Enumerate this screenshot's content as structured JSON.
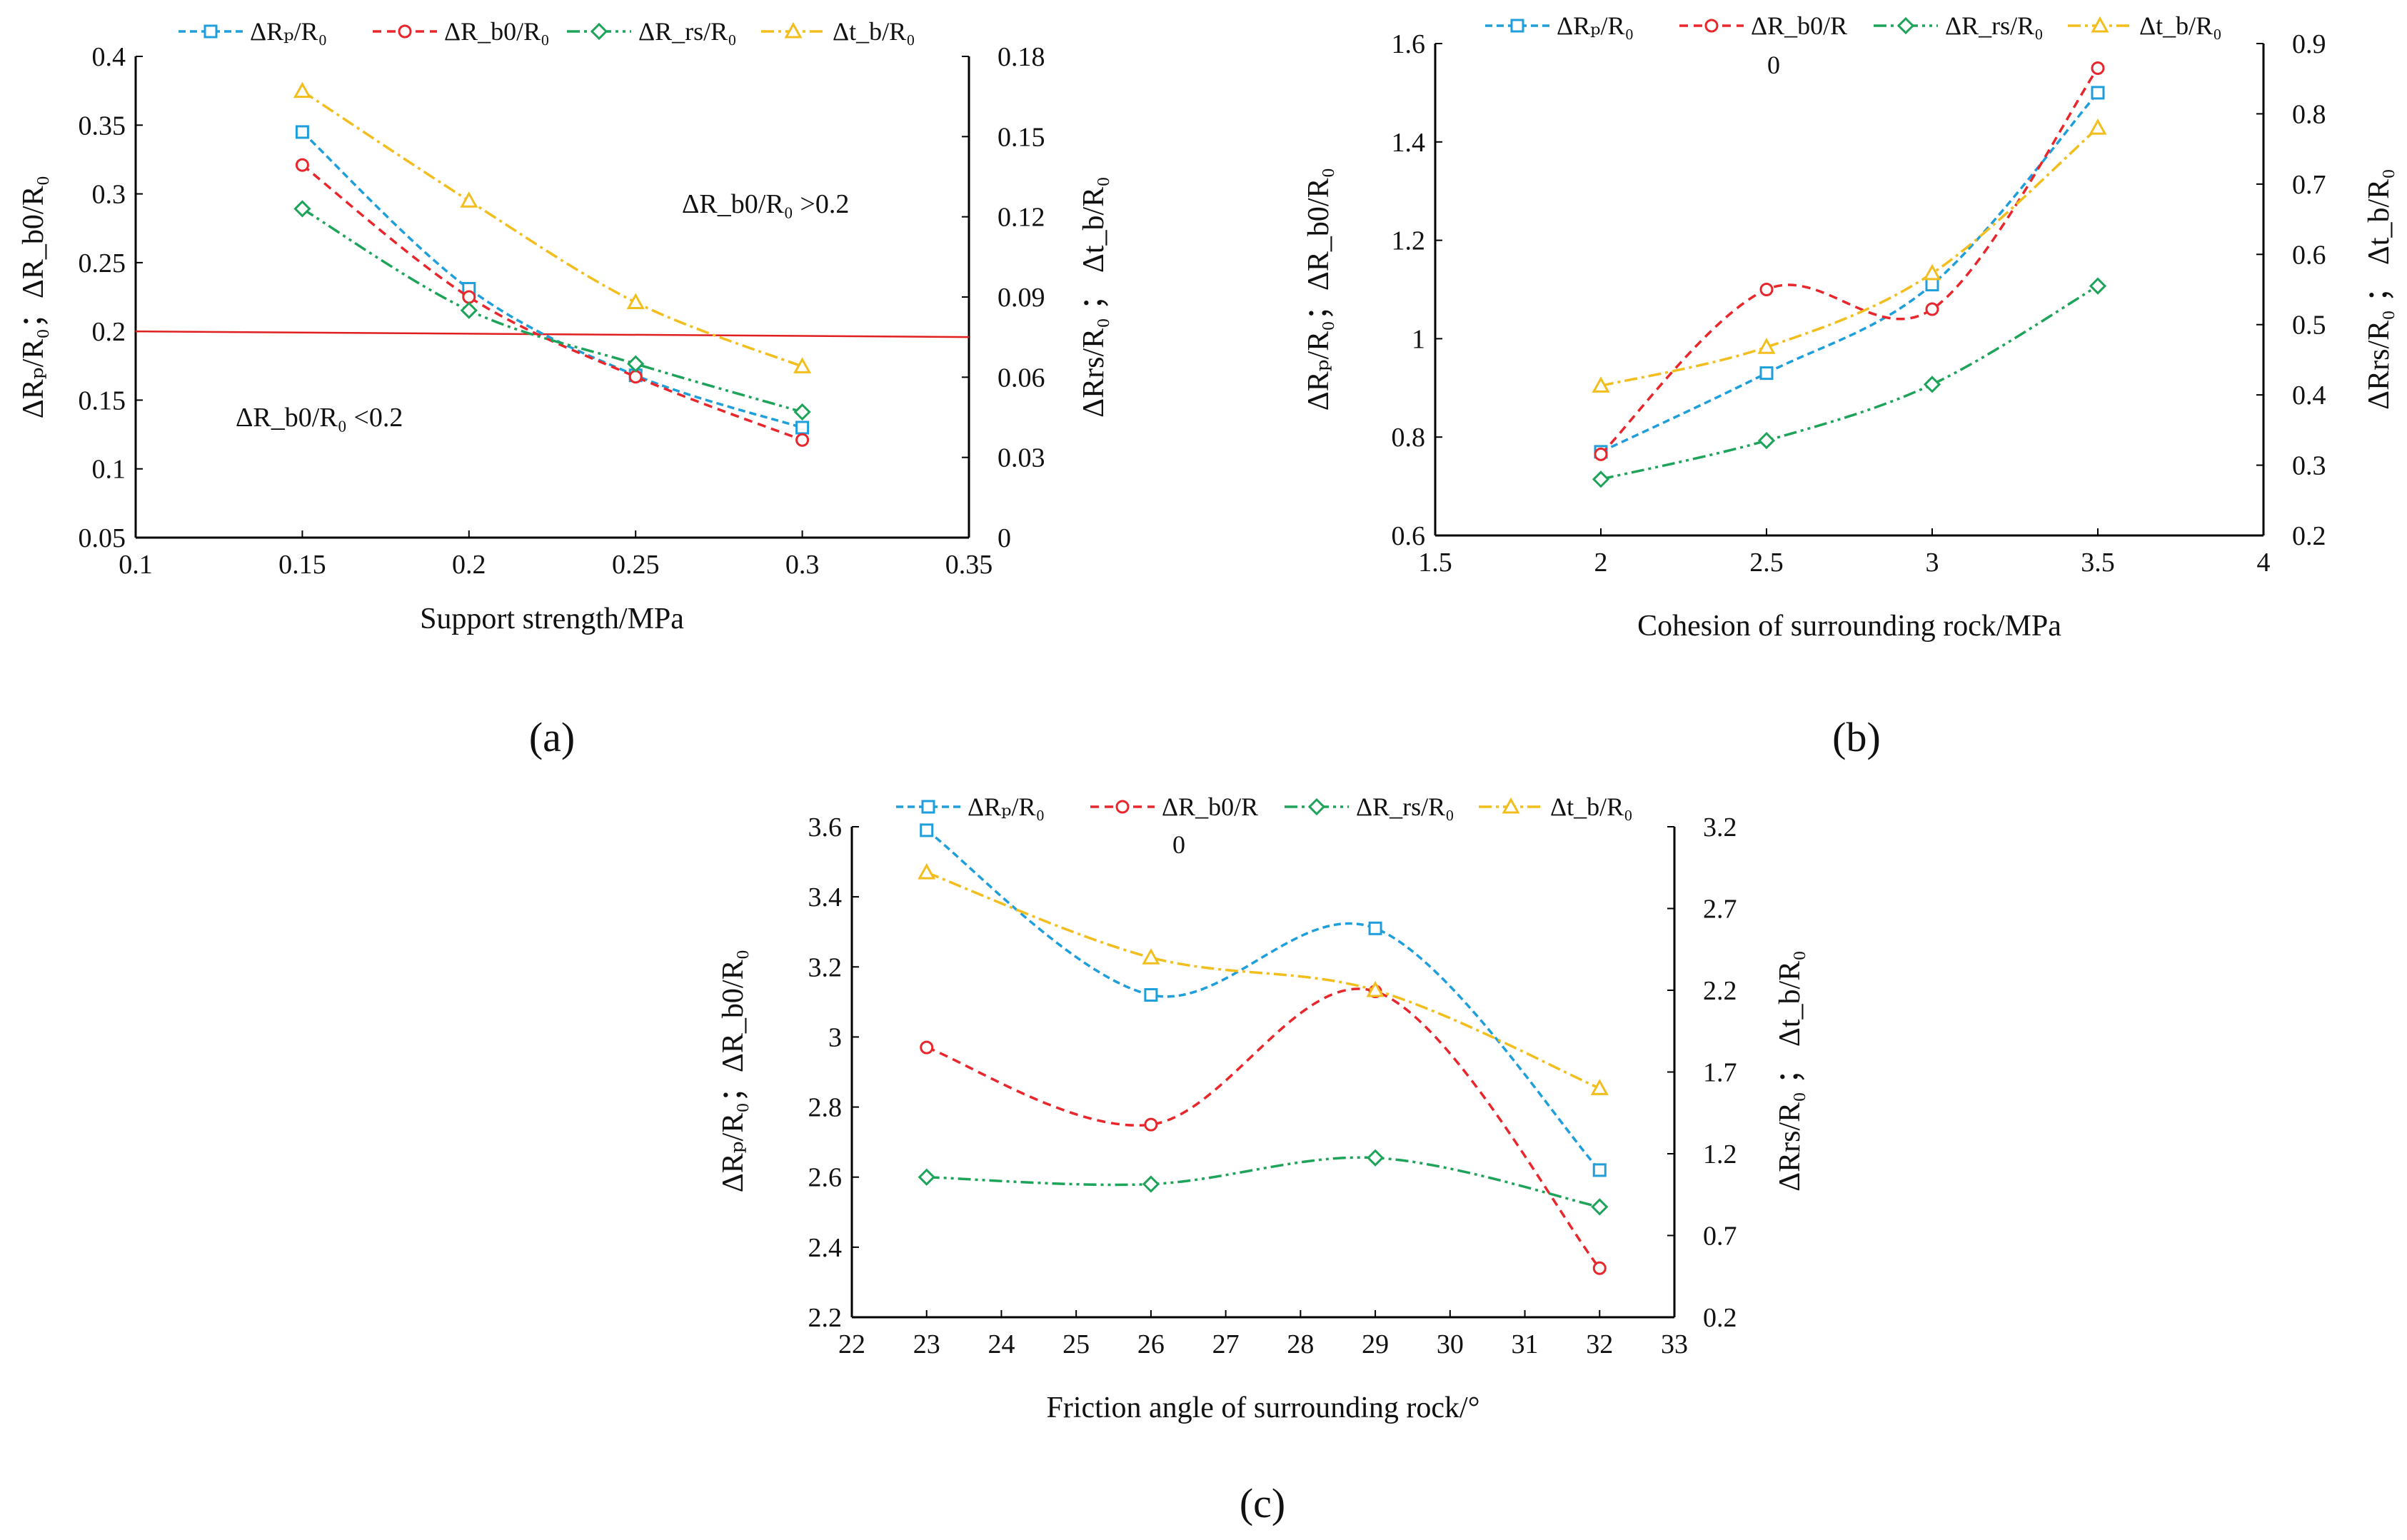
{
  "colors": {
    "rp": "#1E9FDB",
    "rb0": "#E8262B",
    "rrs": "#1EA35A",
    "tb": "#F2BE1D",
    "threshold": "#E02020",
    "axis": "#000000"
  },
  "legend_labels": {
    "a": [
      "ΔRₚ/R₀",
      "ΔR_b0/R₀",
      "ΔR_rs/R₀",
      "Δt_b/R₀"
    ],
    "b": [
      "ΔRₚ/R₀",
      "ΔR_b0/R",
      "ΔR_rs/R₀",
      "Δt_b/R₀"
    ],
    "c": [
      "ΔRₚ/R₀",
      "ΔR_b0/R",
      "ΔR_rs/R₀",
      "Δt_b/R₀"
    ]
  },
  "legend_sub": {
    "b": "0",
    "c": "0"
  },
  "chart_data": [
    {
      "panel": "(a)",
      "type": "line",
      "xlabel": "Support strength/MPa",
      "ylabel_left": "ΔRₚ/R₀；ΔR_b0/R₀",
      "ylabel_right": "ΔRrs/R₀ ； Δt_b/R₀",
      "xlim": [
        0.1,
        0.35
      ],
      "xticks": [
        "0.1",
        "0.15",
        "0.2",
        "0.25",
        "0.3",
        "0.35"
      ],
      "ylim_left": [
        0.05,
        0.4
      ],
      "yticks_left": [
        "0.05",
        "0.1",
        "0.15",
        "0.2",
        "0.25",
        "0.3",
        "0.35",
        "0.4"
      ],
      "ylim_right": [
        0,
        0.18
      ],
      "yticks_right": [
        "0",
        "0.03",
        "0.06",
        "0.09",
        "0.12",
        "0.15",
        "0.18"
      ],
      "x": [
        0.15,
        0.2,
        0.25,
        0.3
      ],
      "series": [
        {
          "name": "ΔRₚ/R₀",
          "axis": "left",
          "values": [
            0.345,
            0.231,
            0.168,
            0.13
          ]
        },
        {
          "name": "ΔR_b0/R₀",
          "axis": "left",
          "values": [
            0.321,
            0.225,
            0.167,
            0.121
          ]
        },
        {
          "name": "ΔR_rs/R₀",
          "axis": "right",
          "values": [
            0.123,
            0.085,
            0.065,
            0.047
          ]
        },
        {
          "name": "Δt_b/R₀",
          "axis": "right",
          "values": [
            0.167,
            0.126,
            0.088,
            0.064
          ]
        }
      ],
      "threshold": {
        "y": 0.2,
        "x_range": [
          0.1,
          0.35
        ]
      },
      "annotations": [
        "ΔR_b0/R₀ >0.2",
        "ΔR_b0/R₀ <0.2"
      ],
      "grid": false,
      "legend_position": "top"
    },
    {
      "panel": "(b)",
      "type": "line",
      "xlabel": "Cohesion of surrounding rock/MPa",
      "ylabel_left": "ΔRₚ/R₀；ΔR_b0/R₀",
      "ylabel_right": "ΔRrs/R₀ ； Δt_b/R₀",
      "xlim": [
        1.5,
        4
      ],
      "xticks": [
        "1.5",
        "2",
        "2.5",
        "3",
        "3.5",
        "4"
      ],
      "ylim_left": [
        0.6,
        1.6
      ],
      "yticks_left": [
        "0.6",
        "0.8",
        "1",
        "1.2",
        "1.4",
        "1.6"
      ],
      "ylim_right": [
        0.2,
        0.9
      ],
      "yticks_right": [
        "0.2",
        "0.3",
        "0.4",
        "0.5",
        "0.6",
        "0.7",
        "0.8",
        "0.9"
      ],
      "x": [
        2,
        2.5,
        3,
        3.5
      ],
      "series": [
        {
          "name": "ΔRₚ/R₀",
          "axis": "left",
          "values": [
            0.77,
            0.93,
            1.11,
            1.5
          ]
        },
        {
          "name": "ΔR_b0/R",
          "axis": "left",
          "values": [
            0.765,
            1.1,
            1.06,
            1.55
          ]
        },
        {
          "name": "ΔR_rs/R₀",
          "axis": "right",
          "values": [
            0.28,
            0.335,
            0.415,
            0.555
          ]
        },
        {
          "name": "Δt_b/R₀",
          "axis": "right",
          "values": [
            0.413,
            0.468,
            0.573,
            0.78
          ]
        }
      ],
      "grid": false,
      "legend_position": "top"
    },
    {
      "panel": "(c)",
      "type": "line",
      "xlabel": "Friction angle of surrounding rock/°",
      "ylabel_left": "ΔRₚ/R₀；ΔR_b0/R₀",
      "ylabel_right": "ΔRrs/R₀ ； Δt_b/R₀",
      "xlim": [
        22,
        33
      ],
      "xticks": [
        "22",
        "23",
        "24",
        "25",
        "26",
        "27",
        "28",
        "29",
        "30",
        "31",
        "32",
        "33"
      ],
      "ylim_left": [
        2.2,
        3.6
      ],
      "yticks_left": [
        "2.2",
        "2.4",
        "2.6",
        "2.8",
        "3",
        "3.2",
        "3.4",
        "3.6"
      ],
      "ylim_right": [
        0.2,
        3.2
      ],
      "yticks_right": [
        "0.2",
        "0.7",
        "1.2",
        "1.7",
        "2.2",
        "2.7",
        "3.2"
      ],
      "x": [
        23,
        26,
        29,
        32
      ],
      "series": [
        {
          "name": "ΔRₚ/R₀",
          "axis": "left",
          "values": [
            3.59,
            3.12,
            3.31,
            2.62
          ]
        },
        {
          "name": "ΔR_b0/R",
          "axis": "left",
          "values": [
            2.97,
            2.75,
            3.13,
            2.34
          ]
        },
        {
          "name": "ΔR_rs/R₀",
          "axis": "left",
          "values": [
            2.6,
            2.58,
            2.655,
            2.515
          ]
        },
        {
          "name": "Δt_b/R₀",
          "axis": "right",
          "values": [
            2.92,
            2.4,
            2.2,
            1.6
          ]
        }
      ],
      "grid": false,
      "legend_position": "top"
    }
  ]
}
